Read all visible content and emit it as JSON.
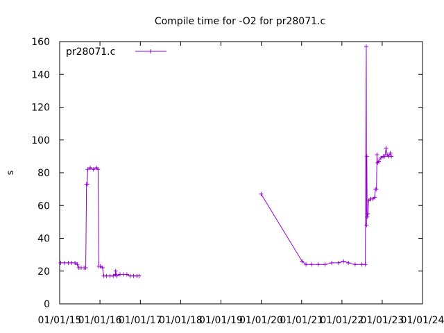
{
  "chart_data": {
    "type": "line",
    "title": "Compile time for -O2 for pr28071.c",
    "xlabel": "",
    "ylabel": "s",
    "ylim": [
      0,
      160
    ],
    "yticks": [
      0,
      20,
      40,
      60,
      80,
      100,
      120,
      140,
      160
    ],
    "xlim": [
      "2015-01-01",
      "2024-01-01"
    ],
    "xticks": [
      "2015-01-01",
      "2016-01-01",
      "2017-01-01",
      "2018-01-01",
      "2019-01-01",
      "2020-01-01",
      "2021-01-01",
      "2022-01-01",
      "2023-01-01",
      "2024-01-01"
    ],
    "xtick_labels": [
      "01/01/15",
      "01/01/16",
      "01/01/17",
      "01/01/18",
      "01/01/19",
      "01/01/20",
      "01/01/21",
      "01/01/22",
      "01/01/23",
      "01/01/24"
    ],
    "grid": false,
    "legend": "top-left",
    "color": "#9400d3",
    "series": [
      {
        "name": "pr28071.c",
        "points": [
          [
            "2015-01-10",
            25
          ],
          [
            "2015-02-15",
            25
          ],
          [
            "2015-03-20",
            25
          ],
          [
            "2015-04-20",
            25
          ],
          [
            "2015-05-20",
            25
          ],
          [
            "2015-06-10",
            24
          ],
          [
            "2015-06-25",
            22
          ],
          [
            "2015-07-15",
            22
          ],
          [
            "2015-08-10",
            22
          ],
          [
            "2015-08-25",
            22
          ],
          [
            "2015-09-01",
            73
          ],
          [
            "2015-09-08",
            73
          ],
          [
            "2015-09-12",
            82
          ],
          [
            "2015-10-05",
            83
          ],
          [
            "2015-11-01",
            82
          ],
          [
            "2015-12-01",
            83
          ],
          [
            "2015-12-15",
            82
          ],
          [
            "2015-12-22",
            23
          ],
          [
            "2016-01-05",
            23
          ],
          [
            "2016-01-25",
            22
          ],
          [
            "2016-02-05",
            17
          ],
          [
            "2016-03-01",
            17
          ],
          [
            "2016-04-01",
            17
          ],
          [
            "2016-05-01",
            17
          ],
          [
            "2016-05-20",
            18
          ],
          [
            "2016-05-22",
            20
          ],
          [
            "2016-06-01",
            17
          ],
          [
            "2016-07-01",
            18
          ],
          [
            "2016-08-01",
            18
          ],
          [
            "2016-09-01",
            18
          ],
          [
            "2016-10-01",
            17
          ],
          [
            "2016-11-01",
            17
          ],
          [
            "2016-12-01",
            17
          ],
          [
            "2016-12-20",
            17
          ],
          [
            "2019-12-31",
            67
          ],
          [
            "2021-01-05",
            26
          ],
          [
            "2021-02-10",
            24
          ],
          [
            "2021-04-01",
            24
          ],
          [
            "2021-06-01",
            24
          ],
          [
            "2021-08-01",
            24
          ],
          [
            "2021-10-01",
            25
          ],
          [
            "2021-12-01",
            25
          ],
          [
            "2022-01-15",
            26
          ],
          [
            "2022-03-01",
            25
          ],
          [
            "2022-05-01",
            24
          ],
          [
            "2022-07-01",
            24
          ],
          [
            "2022-08-01",
            24
          ],
          [
            "2022-08-10",
            157
          ],
          [
            "2022-08-12",
            48
          ],
          [
            "2022-08-15",
            90
          ],
          [
            "2022-08-18",
            53
          ],
          [
            "2022-08-25",
            55
          ],
          [
            "2022-09-01",
            63
          ],
          [
            "2022-09-20",
            64
          ],
          [
            "2022-10-10",
            64
          ],
          [
            "2022-10-25",
            65
          ],
          [
            "2022-11-01",
            70
          ],
          [
            "2022-11-10",
            70
          ],
          [
            "2022-11-15",
            91
          ],
          [
            "2022-11-20",
            86
          ],
          [
            "2022-12-01",
            87
          ],
          [
            "2022-12-20",
            89
          ],
          [
            "2023-01-10",
            90
          ],
          [
            "2023-01-25",
            90
          ],
          [
            "2023-02-05",
            95
          ],
          [
            "2023-02-15",
            91
          ],
          [
            "2023-03-01",
            90
          ],
          [
            "2023-03-15",
            92
          ],
          [
            "2023-03-25",
            90
          ]
        ]
      }
    ]
  }
}
